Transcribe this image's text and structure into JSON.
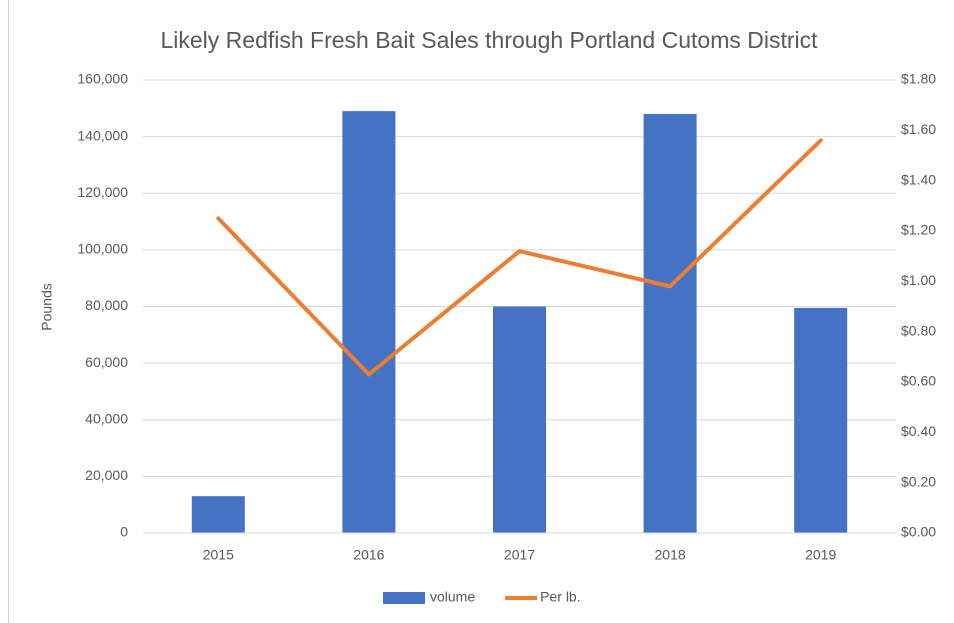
{
  "chart_data": {
    "type": "bar",
    "title": "Likely Redfish Fresh Bait Sales through Portland Cutoms District",
    "ylabel": "Pounds",
    "categories": [
      "2015",
      "2016",
      "2017",
      "2018",
      "2019"
    ],
    "series": [
      {
        "name": "volume",
        "type": "bar",
        "color": "#4472c4",
        "values": [
          13000,
          149000,
          80000,
          148000,
          79500
        ]
      },
      {
        "name": "Per lb.",
        "type": "line",
        "axis": "y2",
        "color": "#ed7d31",
        "values": [
          1.25,
          0.63,
          1.12,
          0.98,
          1.56
        ]
      }
    ],
    "ylim": [
      0,
      160000
    ],
    "yticks": [
      0,
      {
        "value": 20000,
        "label": "20,000"
      },
      {
        "value": 40000,
        "label": "40,000"
      },
      {
        "value": 60000,
        "label": "60,000"
      },
      {
        "value": 80000,
        "label": "80,000"
      },
      {
        "value": 100000,
        "label": "100,000"
      },
      {
        "value": 120000,
        "label": "120,000"
      },
      {
        "value": 140000,
        "label": "140,000"
      },
      {
        "value": 160000,
        "label": "160,000"
      }
    ],
    "y2lim": [
      0,
      1.8
    ],
    "y2ticks": [
      {
        "value": 0,
        "label": "$0.00"
      },
      {
        "value": 0.2,
        "label": "$0.20"
      },
      {
        "value": 0.4,
        "label": "$0.40"
      },
      {
        "value": 0.6,
        "label": "$0.60"
      },
      {
        "value": 0.8,
        "label": "$0.80"
      },
      {
        "value": 1.0,
        "label": "$1.00"
      },
      {
        "value": 1.2,
        "label": "$1.20"
      },
      {
        "value": 1.4,
        "label": "$1.40"
      },
      {
        "value": 1.6,
        "label": "$1.60"
      },
      {
        "value": 1.8,
        "label": "$1.80"
      }
    ],
    "grid": true,
    "legend": "bottom"
  }
}
